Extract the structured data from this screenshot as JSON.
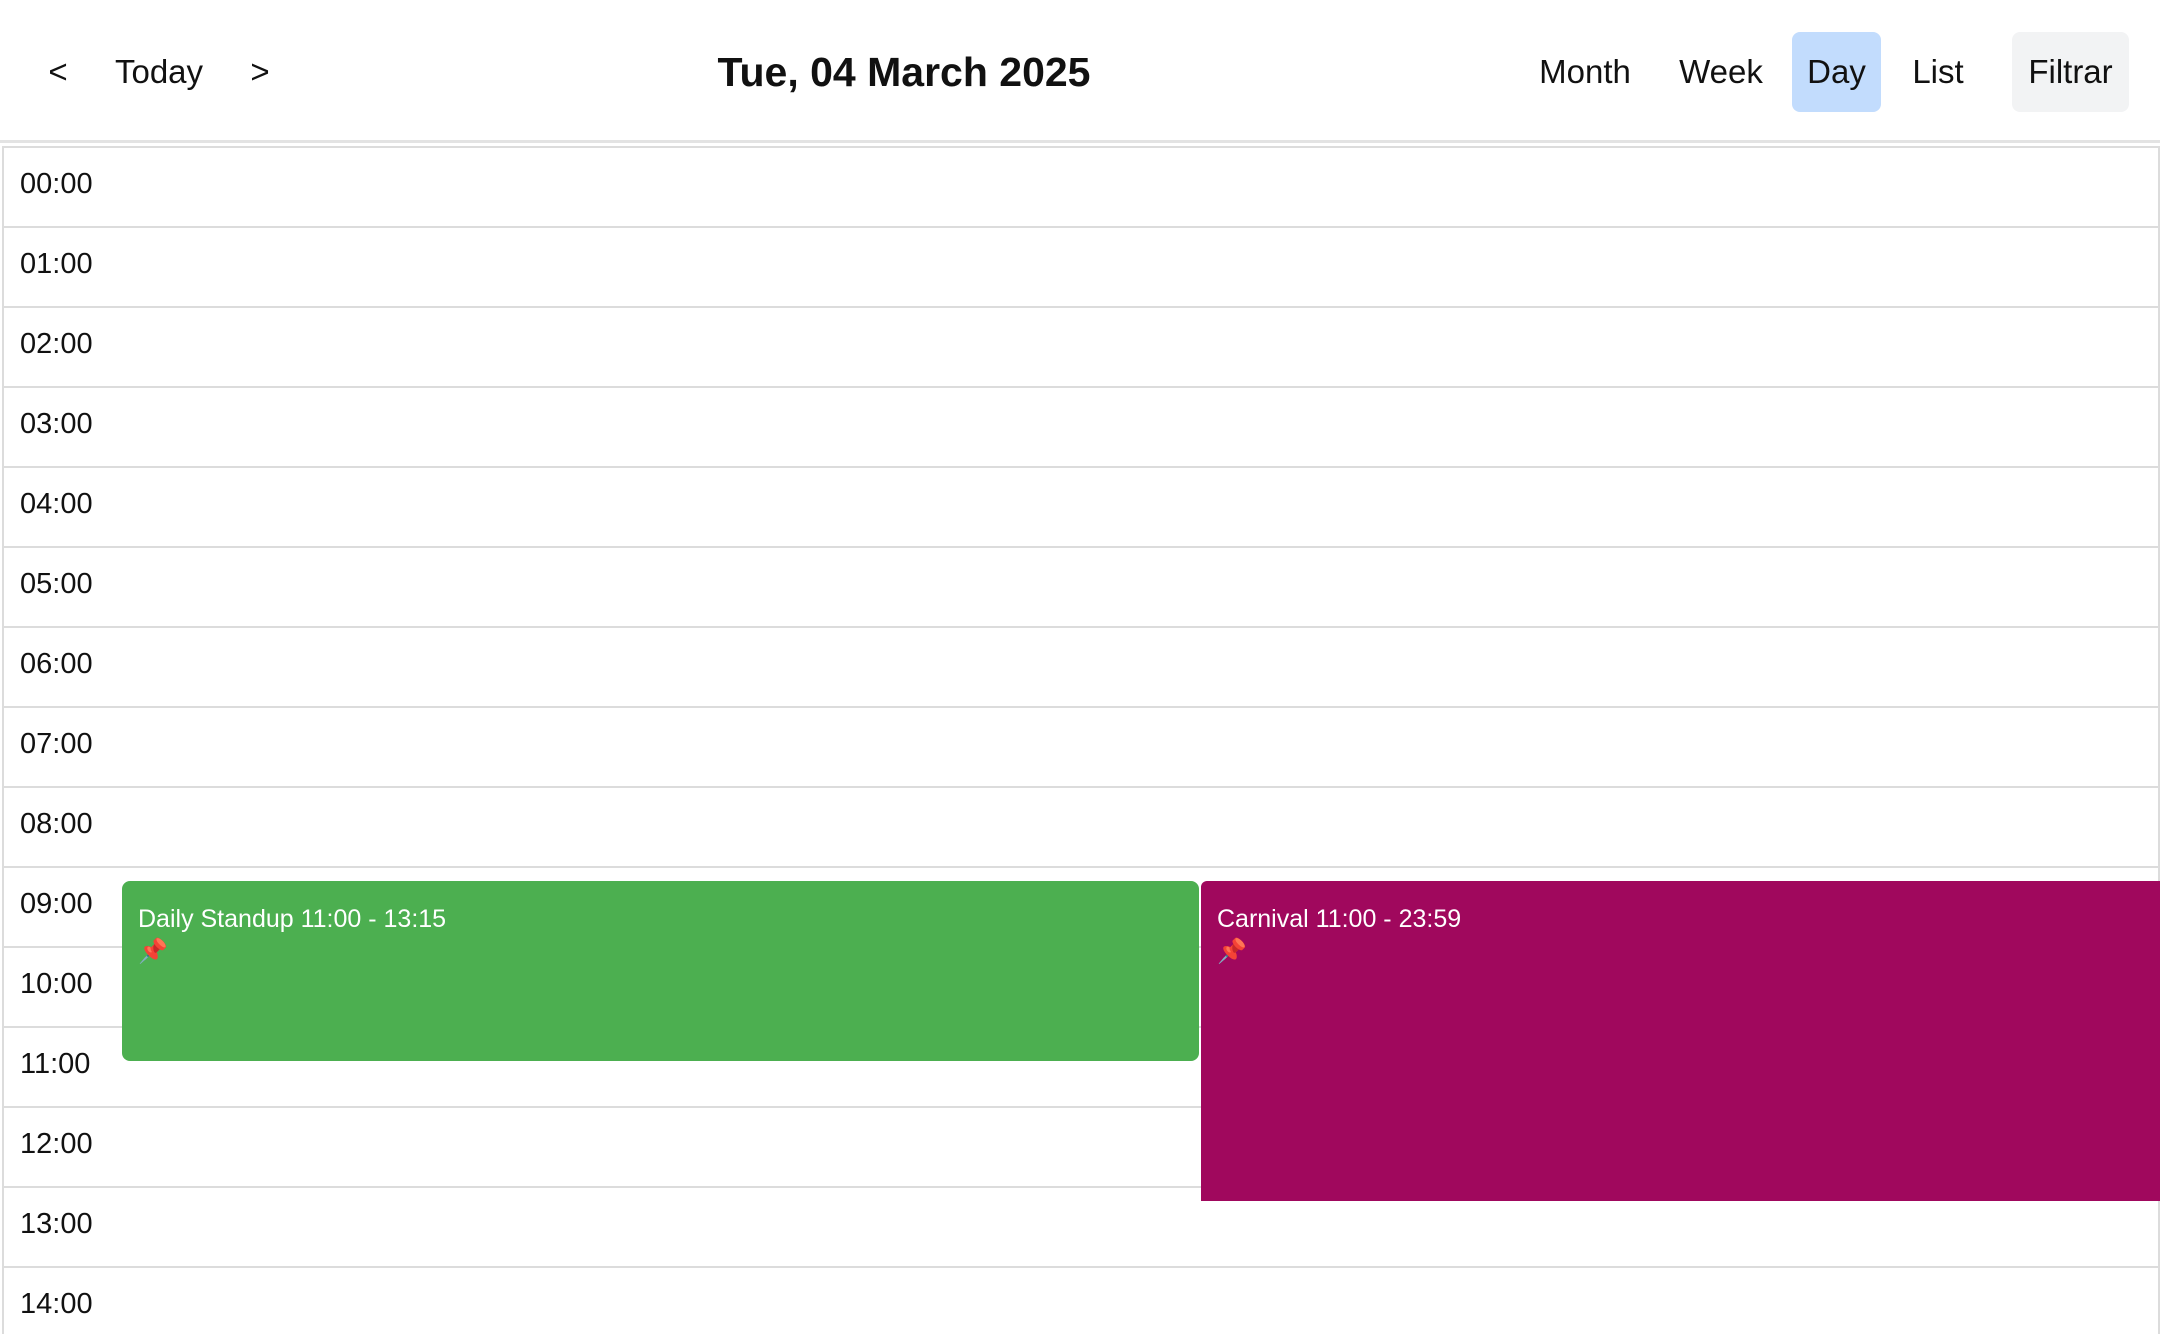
{
  "header": {
    "prev_label": "<",
    "today_label": "Today",
    "next_label": ">",
    "title": "Tue, 04 March 2025",
    "views": [
      {
        "label": "Month",
        "active": false
      },
      {
        "label": "Week",
        "active": false
      },
      {
        "label": "Day",
        "active": true
      },
      {
        "label": "List",
        "active": false
      }
    ],
    "filter_label": "Filtrar"
  },
  "hours": [
    "00:00",
    "01:00",
    "02:00",
    "03:00",
    "04:00",
    "05:00",
    "06:00",
    "07:00",
    "08:00",
    "09:00",
    "10:00",
    "11:00",
    "12:00",
    "13:00",
    "14:00"
  ],
  "events": [
    {
      "title": "Daily Standup 11:00 - 13:15",
      "icon": "pin-icon",
      "pin_glyph": "📌",
      "color": "#4caf50"
    },
    {
      "title": "Carnival 11:00 - 23:59",
      "icon": "pin-icon",
      "pin_glyph": "📌",
      "color": "#a0085d"
    }
  ],
  "colors": {
    "active_view": "#c2dcfd",
    "filter_bg": "#f2f3f4"
  }
}
